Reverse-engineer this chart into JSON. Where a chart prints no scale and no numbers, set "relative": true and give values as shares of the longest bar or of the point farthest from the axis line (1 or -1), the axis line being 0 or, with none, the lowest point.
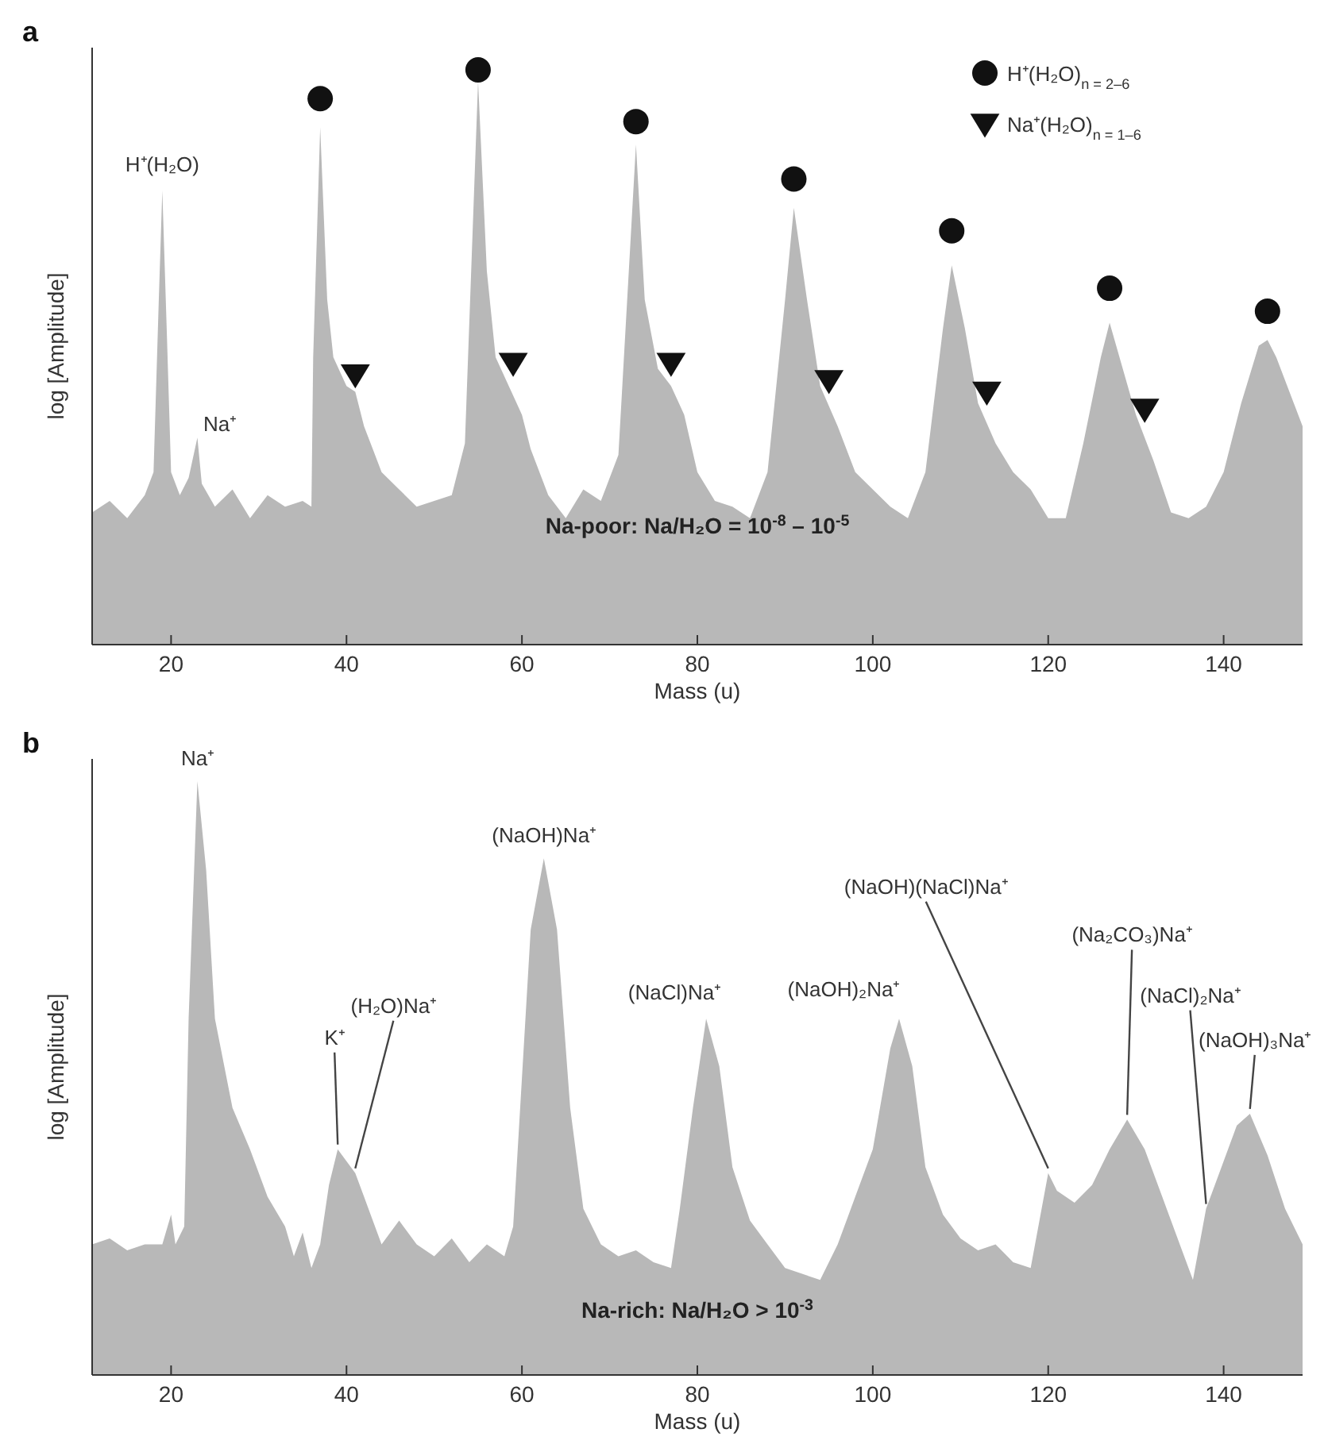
{
  "chart_data": [
    {
      "type": "area",
      "title": "a",
      "xlabel": "Mass (u)",
      "ylabel": "log [Amplitude]",
      "xlim": [
        11,
        149
      ],
      "xticks": [
        20,
        40,
        60,
        80,
        100,
        120,
        140
      ],
      "relative": true,
      "legend": "top right",
      "series": [
        {
          "color": "#b8b8b8",
          "x": [
            11,
            13,
            15,
            17,
            18,
            18.6,
            19,
            19.5,
            20,
            21,
            22,
            23,
            23.5,
            25,
            27,
            29,
            31,
            33,
            35,
            36,
            36.2,
            37,
            37.8,
            38.5,
            40,
            41,
            42,
            43,
            44,
            46,
            48,
            50,
            52,
            53.5,
            55,
            56,
            57,
            58.5,
            60,
            61,
            63,
            65,
            67,
            69,
            71,
            73,
            74,
            75.5,
            77,
            78.5,
            80,
            82,
            84,
            86,
            88,
            90,
            91,
            92.5,
            94,
            96,
            98,
            100,
            102,
            104,
            106,
            108,
            109,
            110.5,
            112,
            114,
            116,
            118,
            120,
            122,
            124,
            126,
            127,
            128.5,
            130,
            132,
            134,
            136,
            138,
            140,
            142,
            144,
            145,
            146,
            148,
            149
          ],
          "values": [
            0.23,
            0.25,
            0.22,
            0.26,
            0.3,
            0.6,
            0.79,
            0.55,
            0.3,
            0.26,
            0.29,
            0.36,
            0.28,
            0.24,
            0.27,
            0.22,
            0.26,
            0.24,
            0.25,
            0.24,
            0.5,
            0.9,
            0.6,
            0.5,
            0.45,
            0.44,
            0.38,
            0.34,
            0.3,
            0.27,
            0.24,
            0.25,
            0.26,
            0.35,
            0.98,
            0.65,
            0.5,
            0.45,
            0.4,
            0.34,
            0.26,
            0.22,
            0.27,
            0.25,
            0.33,
            0.87,
            0.6,
            0.48,
            0.45,
            0.4,
            0.3,
            0.25,
            0.24,
            0.22,
            0.3,
            0.6,
            0.76,
            0.6,
            0.45,
            0.38,
            0.3,
            0.27,
            0.24,
            0.22,
            0.3,
            0.55,
            0.66,
            0.55,
            0.42,
            0.35,
            0.3,
            0.27,
            0.22,
            0.22,
            0.35,
            0.5,
            0.56,
            0.48,
            0.4,
            0.32,
            0.23,
            0.22,
            0.24,
            0.3,
            0.42,
            0.52,
            0.53,
            0.5,
            0.42,
            0.38
          ]
        },
        {
          "type": "scatter",
          "name": "H⁺(H₂O)$_{n = 2–6}$",
          "color": "#111111",
          "marker": "circle",
          "x": [
            37,
            55,
            73,
            91,
            109,
            127,
            145
          ],
          "values": [
            0.95,
            1.0,
            0.91,
            0.81,
            0.72,
            0.62,
            0.58
          ]
        },
        {
          "type": "scatter",
          "name": "Na⁺(H₂O)$_{n = 1–6}$",
          "color": "#111111",
          "marker": "triangle",
          "x": [
            41,
            59,
            77,
            95,
            113,
            131
          ],
          "values": [
            0.47,
            0.49,
            0.49,
            0.46,
            0.44,
            0.41
          ]
        }
      ],
      "annotations": [
        {
          "text": "H⁺(H₂O)",
          "x": 19,
          "y": 0.79
        },
        {
          "text": "Na⁺",
          "x": 23,
          "y": 0.36
        },
        "Na-poor: Na/H₂O = 10$^{-8}$ – 10$^{-5}$"
      ]
    },
    {
      "type": "area",
      "title": "b",
      "xlabel": "Mass (u)",
      "ylabel": "log [Amplitude]",
      "xlim": [
        11,
        149
      ],
      "xticks": [
        20,
        40,
        60,
        80,
        100,
        120,
        140
      ],
      "relative": true,
      "series": [
        {
          "color": "#b8b8b8",
          "x": [
            11,
            13,
            15,
            17,
            19,
            20,
            20.5,
            21.5,
            22,
            23,
            24,
            25,
            27,
            29,
            31,
            33,
            34,
            35,
            36,
            37,
            38,
            39,
            40,
            41,
            42,
            44,
            46,
            48,
            50,
            52,
            54,
            56,
            58,
            59,
            60,
            61,
            62.5,
            64,
            65.5,
            67,
            69,
            71,
            73,
            75,
            77,
            78,
            79.5,
            81,
            82.5,
            84,
            86,
            88,
            90,
            92,
            94,
            96,
            98,
            100,
            102,
            103,
            104.5,
            106,
            108,
            110,
            112,
            114,
            116,
            118,
            119,
            120,
            121,
            123,
            125,
            127,
            129,
            131,
            133,
            135,
            136.5,
            138,
            140,
            141.5,
            143,
            145,
            147,
            149
          ],
          "values": [
            0.22,
            0.23,
            0.21,
            0.22,
            0.22,
            0.27,
            0.22,
            0.25,
            0.6,
            1.0,
            0.85,
            0.6,
            0.45,
            0.38,
            0.3,
            0.25,
            0.2,
            0.24,
            0.18,
            0.22,
            0.32,
            0.38,
            0.36,
            0.34,
            0.3,
            0.22,
            0.26,
            0.22,
            0.2,
            0.23,
            0.19,
            0.22,
            0.2,
            0.25,
            0.5,
            0.75,
            0.87,
            0.75,
            0.45,
            0.28,
            0.22,
            0.2,
            0.21,
            0.19,
            0.18,
            0.28,
            0.45,
            0.6,
            0.52,
            0.35,
            0.26,
            0.22,
            0.18,
            0.17,
            0.16,
            0.22,
            0.3,
            0.38,
            0.55,
            0.6,
            0.52,
            0.35,
            0.27,
            0.23,
            0.21,
            0.22,
            0.19,
            0.18,
            0.26,
            0.34,
            0.31,
            0.29,
            0.32,
            0.38,
            0.43,
            0.38,
            0.3,
            0.22,
            0.16,
            0.28,
            0.36,
            0.42,
            0.44,
            0.37,
            0.28,
            0.22
          ]
        }
      ],
      "annotations": [
        {
          "text": "Na⁺",
          "x": 23,
          "y": 1.0
        },
        {
          "text": "K⁺",
          "x": 39,
          "y": 0.38
        },
        {
          "text": "(H₂O)Na⁺",
          "x": 41,
          "y": 0.34
        },
        {
          "text": "(NaOH)Na⁺",
          "x": 62.5,
          "y": 0.87
        },
        {
          "text": "(NaCl)Na⁺",
          "x": 81,
          "y": 0.6
        },
        {
          "text": "(NaOH)₂Na⁺",
          "x": 103,
          "y": 0.6
        },
        {
          "text": "(NaOH)(NaCl)Na⁺",
          "x": 120,
          "y": 0.34
        },
        {
          "text": "(Na₂CO₃)Na⁺",
          "x": 129,
          "y": 0.43
        },
        {
          "text": "(NaCl)₂Na⁺",
          "x": 138,
          "y": 0.28
        },
        {
          "text": "(NaOH)₃Na⁺",
          "x": 143,
          "y": 0.44
        },
        "Na-rich: Na/H₂O > 10$^{-3}$"
      ]
    }
  ]
}
